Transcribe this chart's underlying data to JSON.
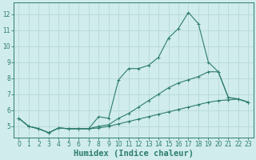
{
  "xlabel": "Humidex (Indice chaleur)",
  "x": [
    0,
    1,
    2,
    3,
    4,
    5,
    6,
    7,
    8,
    9,
    10,
    11,
    12,
    13,
    14,
    15,
    16,
    17,
    18,
    19,
    20,
    21,
    22,
    23
  ],
  "line1": [
    5.5,
    5.0,
    4.85,
    4.6,
    4.9,
    4.85,
    4.85,
    4.85,
    4.9,
    5.0,
    5.15,
    5.3,
    5.45,
    5.6,
    5.75,
    5.9,
    6.05,
    6.2,
    6.35,
    6.5,
    6.6,
    6.65,
    6.7,
    6.5
  ],
  "line2": [
    5.5,
    5.0,
    4.85,
    4.6,
    4.9,
    4.85,
    4.85,
    4.85,
    5.0,
    5.1,
    5.5,
    5.8,
    6.2,
    6.6,
    7.0,
    7.4,
    7.7,
    7.9,
    8.1,
    8.4,
    8.4,
    6.8,
    6.7,
    6.5
  ],
  "line3": [
    5.5,
    5.0,
    4.85,
    4.6,
    4.9,
    4.85,
    4.85,
    4.85,
    5.6,
    5.5,
    7.9,
    8.6,
    8.6,
    8.8,
    9.3,
    10.5,
    11.1,
    12.1,
    11.4,
    9.0,
    8.4,
    6.8,
    6.7,
    6.5
  ],
  "line_color": "#2e7d6e",
  "bg_color": "#d0ecec",
  "grid_color": "#b8d8d8",
  "xlim": [
    -0.5,
    23.5
  ],
  "ylim": [
    4.3,
    12.7
  ],
  "yticks": [
    5,
    6,
    7,
    8,
    9,
    10,
    11,
    12
  ],
  "xticks": [
    0,
    1,
    2,
    3,
    4,
    5,
    6,
    7,
    8,
    9,
    10,
    11,
    12,
    13,
    14,
    15,
    16,
    17,
    18,
    19,
    20,
    21,
    22,
    23
  ],
  "tick_fontsize": 5.5,
  "xlabel_fontsize": 7.5
}
